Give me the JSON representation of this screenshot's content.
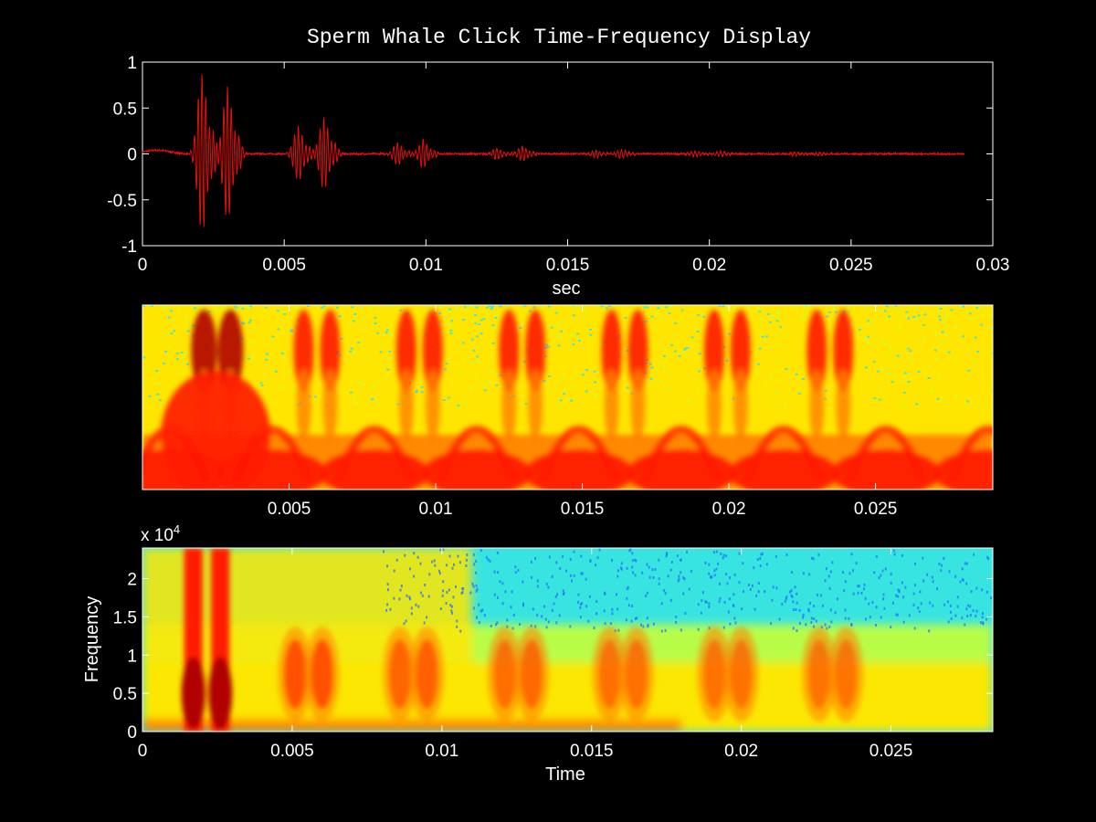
{
  "figure": {
    "title": "Sperm Whale Click Time-Frequency Display",
    "background": "#000000",
    "axis_color": "#ffffff",
    "waveform_color": "#e01010"
  },
  "chart_data": [
    {
      "type": "line",
      "name": "waveform",
      "title": "Sperm Whale Click Time-Frequency Display",
      "xlabel": "sec",
      "ylabel": "",
      "xlim": [
        0,
        0.03
      ],
      "ylim": [
        -1,
        1
      ],
      "xticks": [
        0,
        0.005,
        0.01,
        0.015,
        0.02,
        0.025,
        0.03
      ],
      "xtick_labels": [
        "0",
        "0.005",
        "0.01",
        "0.015",
        "0.02",
        "0.025",
        "0.03"
      ],
      "yticks": [
        1,
        0.5,
        0,
        -0.5,
        -1
      ],
      "ytick_labels": [
        "1",
        "0.5",
        "0",
        "-0.5",
        "-1"
      ],
      "grid": false,
      "signal_end": 0.029,
      "clicks": [
        {
          "t": 0.0021,
          "amp": 0.87
        },
        {
          "t": 0.003,
          "amp": 0.73
        },
        {
          "t": 0.0055,
          "amp": 0.3
        },
        {
          "t": 0.0064,
          "amp": 0.4
        },
        {
          "t": 0.009,
          "amp": 0.12
        },
        {
          "t": 0.0099,
          "amp": 0.15
        },
        {
          "t": 0.0125,
          "amp": 0.06
        },
        {
          "t": 0.0134,
          "amp": 0.08
        },
        {
          "t": 0.016,
          "amp": 0.04
        },
        {
          "t": 0.0169,
          "amp": 0.05
        },
        {
          "t": 0.0195,
          "amp": 0.03
        },
        {
          "t": 0.0204,
          "amp": 0.03
        },
        {
          "t": 0.023,
          "amp": 0.02
        },
        {
          "t": 0.0239,
          "amp": 0.02
        }
      ]
    },
    {
      "type": "heatmap",
      "name": "scalogram",
      "colormap": "jet",
      "xlim": [
        0,
        0.029
      ],
      "xticks": [
        0.005,
        0.01,
        0.015,
        0.02,
        0.025
      ],
      "xtick_labels": [
        "0.005",
        "0.01",
        "0.015",
        "0.02",
        "0.025"
      ],
      "yticks": [],
      "xlabel": "",
      "ylabel": ""
    },
    {
      "type": "heatmap",
      "name": "spectrogram",
      "colormap": "jet",
      "xlabel": "Time",
      "ylabel": "Frequency",
      "exponent_label": "x 10",
      "exponent_sup": "4",
      "xlim": [
        0,
        0.0284
      ],
      "ylim": [
        0,
        24000
      ],
      "xticks": [
        0,
        0.005,
        0.01,
        0.015,
        0.02,
        0.025
      ],
      "xtick_labels": [
        "0",
        "0.005",
        "0.01",
        "0.015",
        "0.02",
        "0.025"
      ],
      "yticks": [
        0,
        5000,
        10000,
        15000,
        20000
      ],
      "ytick_labels": [
        "0",
        "0.5",
        "1",
        "1.5",
        "2"
      ]
    }
  ]
}
